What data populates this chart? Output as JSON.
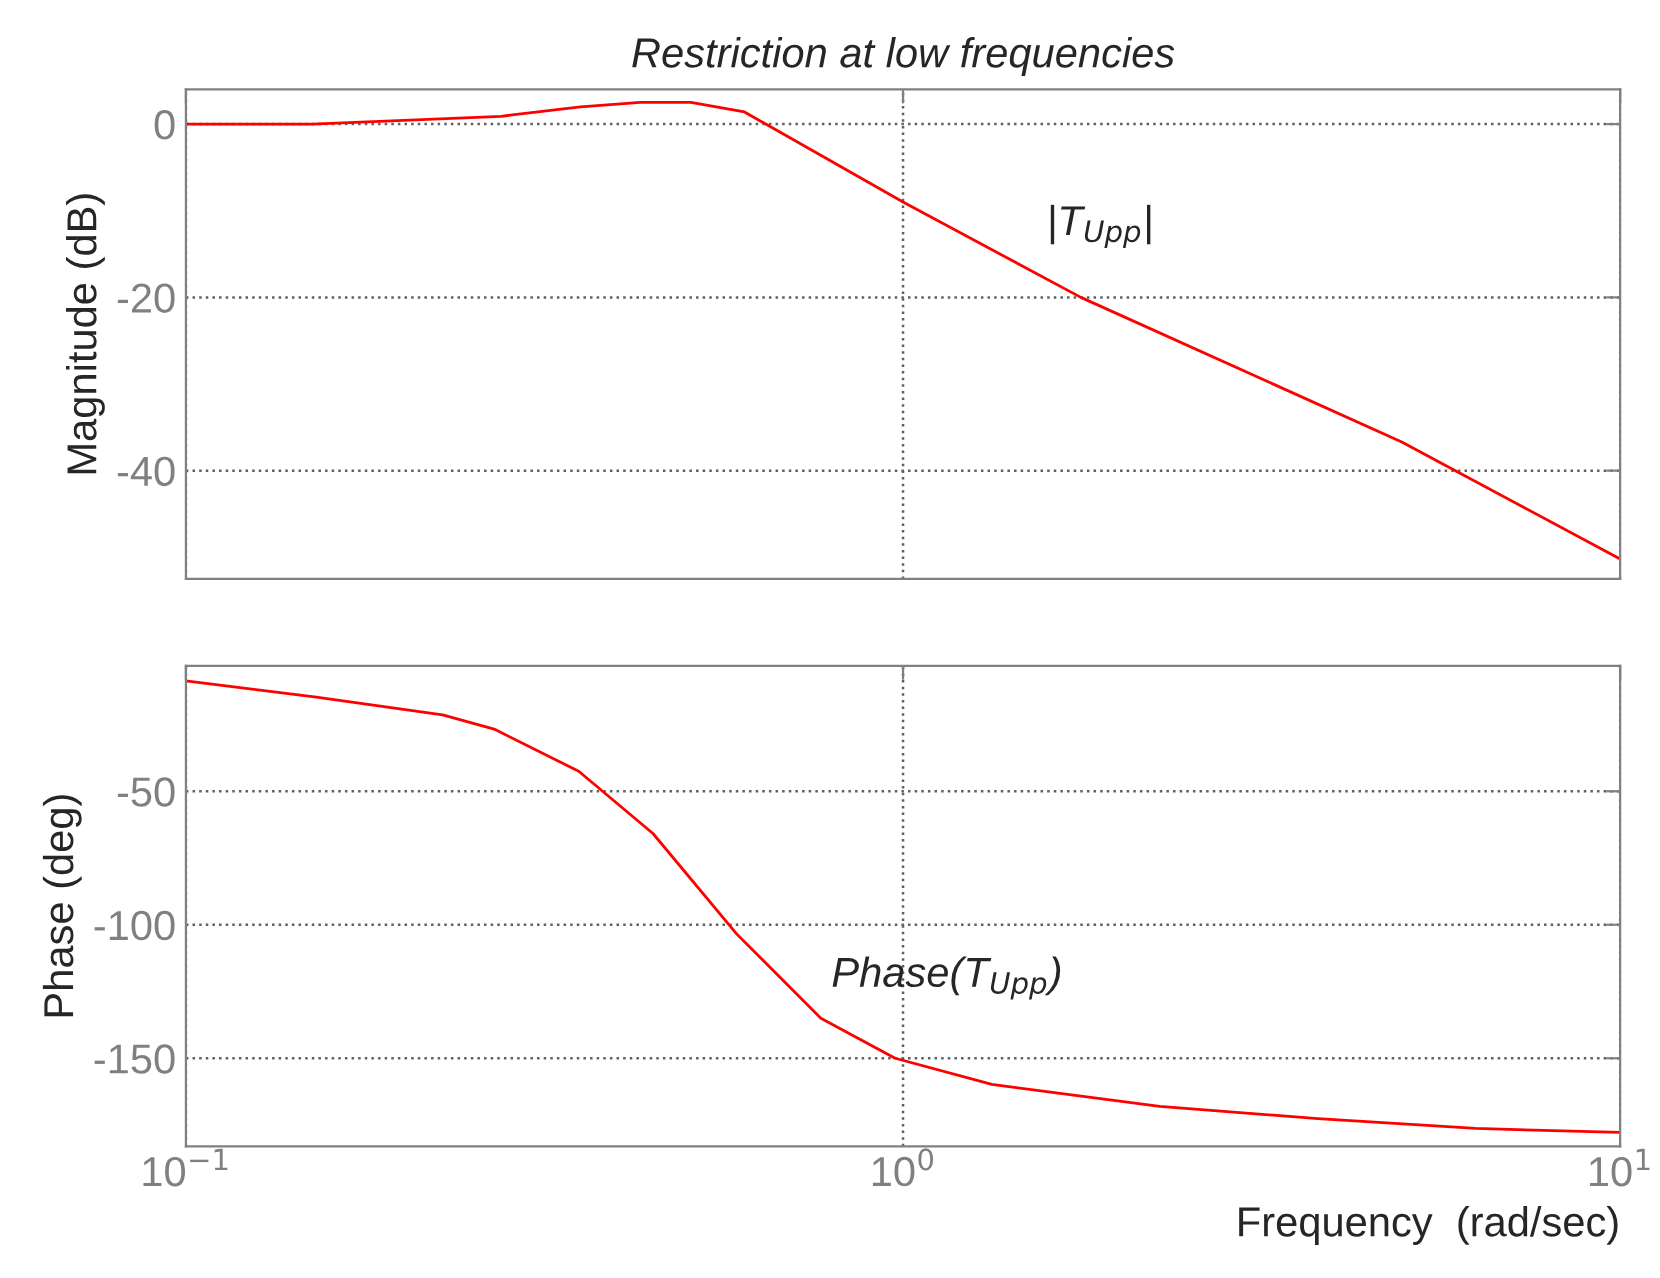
{
  "chart_data": [
    {
      "type": "line",
      "title": "Restriction at low frequencies",
      "ylabel": "Magnitude (dB)",
      "x": [
        0.1,
        0.15,
        0.275,
        0.355,
        0.43,
        0.506,
        0.601,
        1,
        1.77,
        4.96,
        10
      ],
      "series": [
        {
          "color": "#ff0000",
          "values": [
            0,
            0,
            0.9,
            2,
            2.5,
            2.5,
            1.4,
            -9,
            -20,
            -36.7,
            -50.2
          ]
        }
      ],
      "log": "x",
      "xlim": [
        0.1,
        10
      ],
      "xticks": [
        0.1,
        1,
        10
      ],
      "ylim": [
        -52.5,
        4
      ],
      "yticks": [
        -40,
        -20,
        0
      ],
      "grid": true,
      "tick_labels": "y",
      "annotations": [
        "|T$_{Upp}$|"
      ]
    },
    {
      "type": "line",
      "xlabel": "Frequency  (rad/sec)",
      "ylabel": "Phase (deg)",
      "x": [
        0.1,
        0.152,
        0.228,
        0.269,
        0.353,
        0.448,
        0.586,
        0.768,
        0.975,
        1.33,
        2.28,
        3.79,
        6.29,
        10
      ],
      "series": [
        {
          "color": "#ff0000",
          "values": [
            -8.6,
            -14.7,
            -21.4,
            -26.7,
            -42.5,
            -65.8,
            -103.4,
            -135,
            -150,
            -159.8,
            -168,
            -172.6,
            -176.3,
            -177.8
          ]
        }
      ],
      "log": "x",
      "xlim": [
        0.1,
        10
      ],
      "xticks": [
        {
          "value": 0.1,
          "label": "10$^{−1}$"
        },
        {
          "value": 1,
          "label": "10$^{0}$"
        },
        {
          "value": 10,
          "label": "10$^{1}$"
        }
      ],
      "ylim": [
        -183,
        -3
      ],
      "yticks": [
        -150,
        -100,
        -50
      ],
      "grid": true,
      "annotations": [
        "Phase(T$_{Upp}$)"
      ]
    }
  ]
}
